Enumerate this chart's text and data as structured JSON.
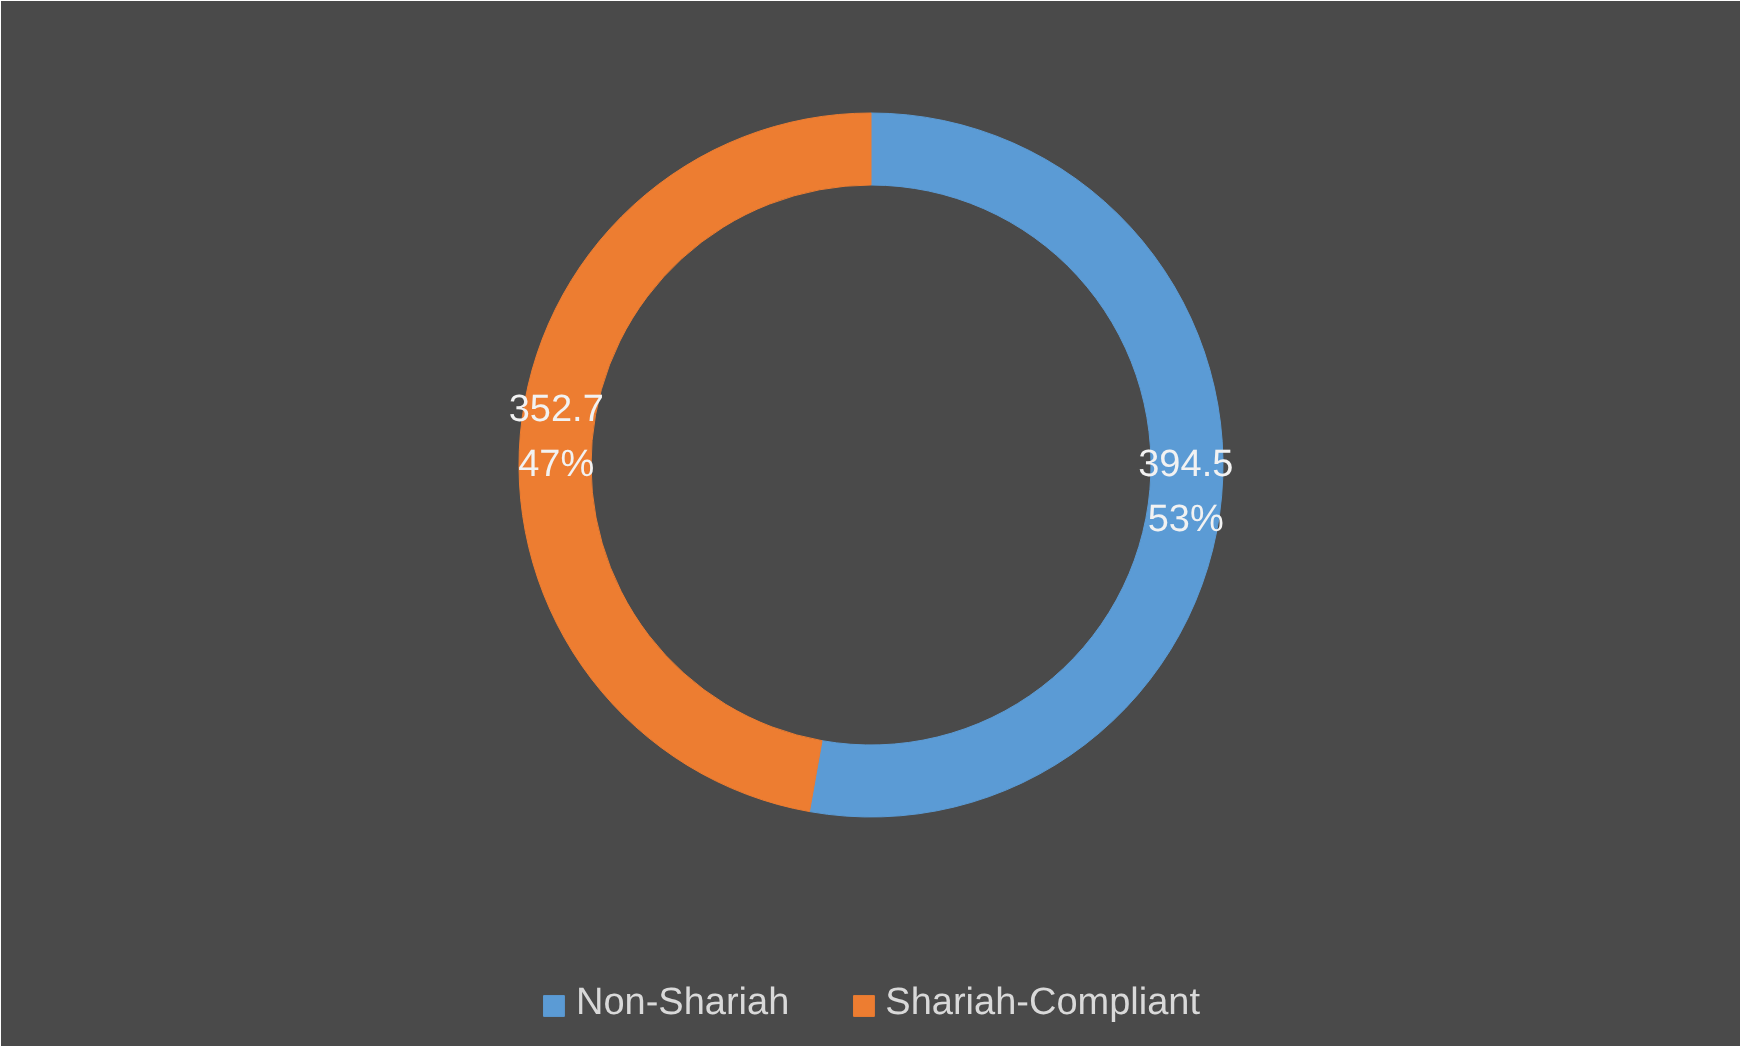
{
  "chart_data": {
    "type": "donut",
    "categories": [
      "Non-Shariah",
      "Shariah-Compliant"
    ],
    "values": [
      394.5,
      352.7
    ],
    "colors": [
      "#5b9bd5",
      "#ed7d31"
    ],
    "value_labels": [
      "394.5\n53%",
      "352.7\n47%"
    ],
    "legend": "bottom"
  }
}
